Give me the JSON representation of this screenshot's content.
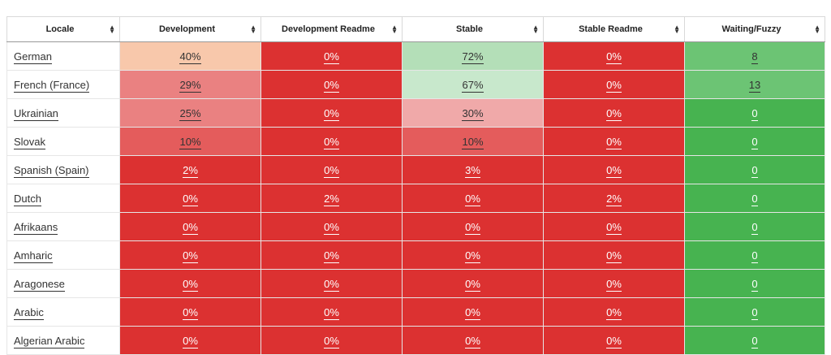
{
  "colors": {
    "red": "#dc3131",
    "red_medium": "#e45c5c",
    "red_light": "#ea8181",
    "pink": "#f0a9a9",
    "peach": "#f8c8ab",
    "green_light": "#b4dfb8",
    "green_pale": "#c8e8cc",
    "green_medium": "#6cc474",
    "green": "#47b350"
  },
  "table": {
    "headers": [
      "Locale",
      "Development",
      "Development Readme",
      "Stable",
      "Stable Readme",
      "Waiting/Fuzzy"
    ],
    "rows": [
      {
        "locale": "German",
        "cells": [
          {
            "v": "40%",
            "bg": "peach",
            "light": true
          },
          {
            "v": "0%",
            "bg": "red"
          },
          {
            "v": "72%",
            "bg": "green_light",
            "light": true
          },
          {
            "v": "0%",
            "bg": "red"
          },
          {
            "v": "8",
            "bg": "green_medium",
            "light": true
          }
        ]
      },
      {
        "locale": "French (France)",
        "cells": [
          {
            "v": "29%",
            "bg": "red_light",
            "light": true
          },
          {
            "v": "0%",
            "bg": "red"
          },
          {
            "v": "67%",
            "bg": "green_pale",
            "light": true
          },
          {
            "v": "0%",
            "bg": "red"
          },
          {
            "v": "13",
            "bg": "green_medium",
            "light": true
          }
        ]
      },
      {
        "locale": "Ukrainian",
        "cells": [
          {
            "v": "25%",
            "bg": "red_light",
            "light": true
          },
          {
            "v": "0%",
            "bg": "red"
          },
          {
            "v": "30%",
            "bg": "pink",
            "light": true
          },
          {
            "v": "0%",
            "bg": "red"
          },
          {
            "v": "0",
            "bg": "green"
          }
        ]
      },
      {
        "locale": "Slovak",
        "cells": [
          {
            "v": "10%",
            "bg": "red_medium",
            "light": true
          },
          {
            "v": "0%",
            "bg": "red"
          },
          {
            "v": "10%",
            "bg": "red_medium",
            "light": true
          },
          {
            "v": "0%",
            "bg": "red"
          },
          {
            "v": "0",
            "bg": "green"
          }
        ]
      },
      {
        "locale": "Spanish (Spain)",
        "cells": [
          {
            "v": "2%",
            "bg": "red"
          },
          {
            "v": "0%",
            "bg": "red"
          },
          {
            "v": "3%",
            "bg": "red"
          },
          {
            "v": "0%",
            "bg": "red"
          },
          {
            "v": "0",
            "bg": "green"
          }
        ]
      },
      {
        "locale": "Dutch",
        "cells": [
          {
            "v": "0%",
            "bg": "red"
          },
          {
            "v": "2%",
            "bg": "red"
          },
          {
            "v": "0%",
            "bg": "red"
          },
          {
            "v": "2%",
            "bg": "red"
          },
          {
            "v": "0",
            "bg": "green"
          }
        ]
      },
      {
        "locale": "Afrikaans",
        "cells": [
          {
            "v": "0%",
            "bg": "red"
          },
          {
            "v": "0%",
            "bg": "red"
          },
          {
            "v": "0%",
            "bg": "red"
          },
          {
            "v": "0%",
            "bg": "red"
          },
          {
            "v": "0",
            "bg": "green"
          }
        ]
      },
      {
        "locale": "Amharic",
        "cells": [
          {
            "v": "0%",
            "bg": "red"
          },
          {
            "v": "0%",
            "bg": "red"
          },
          {
            "v": "0%",
            "bg": "red"
          },
          {
            "v": "0%",
            "bg": "red"
          },
          {
            "v": "0",
            "bg": "green"
          }
        ]
      },
      {
        "locale": "Aragonese",
        "cells": [
          {
            "v": "0%",
            "bg": "red"
          },
          {
            "v": "0%",
            "bg": "red"
          },
          {
            "v": "0%",
            "bg": "red"
          },
          {
            "v": "0%",
            "bg": "red"
          },
          {
            "v": "0",
            "bg": "green"
          }
        ]
      },
      {
        "locale": "Arabic",
        "cells": [
          {
            "v": "0%",
            "bg": "red"
          },
          {
            "v": "0%",
            "bg": "red"
          },
          {
            "v": "0%",
            "bg": "red"
          },
          {
            "v": "0%",
            "bg": "red"
          },
          {
            "v": "0",
            "bg": "green"
          }
        ]
      },
      {
        "locale": "Algerian Arabic",
        "cells": [
          {
            "v": "0%",
            "bg": "red"
          },
          {
            "v": "0%",
            "bg": "red"
          },
          {
            "v": "0%",
            "bg": "red"
          },
          {
            "v": "0%",
            "bg": "red"
          },
          {
            "v": "0",
            "bg": "green"
          }
        ]
      }
    ]
  }
}
